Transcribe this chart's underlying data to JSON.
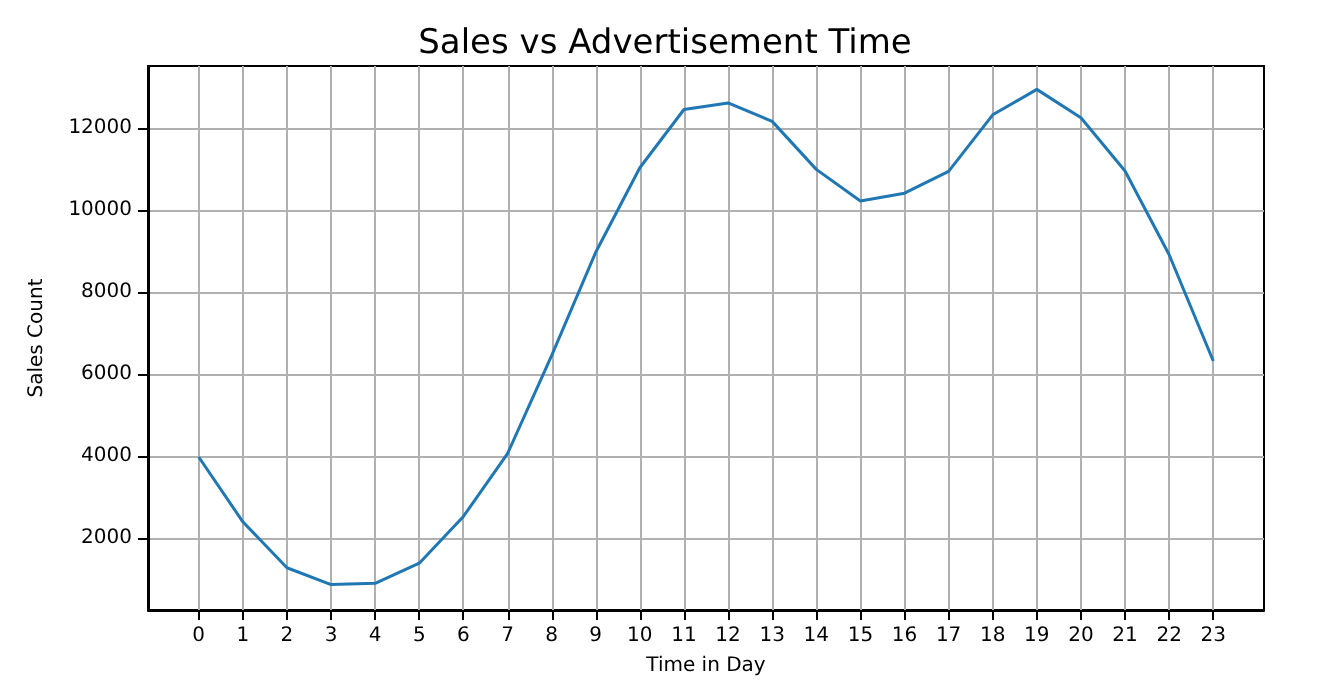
{
  "chart_data": {
    "type": "line",
    "title": "Sales vs Advertisement Time",
    "xlabel": "Time in Day",
    "ylabel": "Sales Count",
    "x": [
      0,
      1,
      2,
      3,
      4,
      5,
      6,
      7,
      8,
      9,
      10,
      11,
      12,
      13,
      14,
      15,
      16,
      17,
      18,
      19,
      20,
      21,
      22,
      23
    ],
    "series": [
      {
        "color": "#1f77b4",
        "values": [
          3970,
          2390,
          1270,
          860,
          890,
          1380,
          2520,
          4050,
          6440,
          8960,
          11020,
          12440,
          12600,
          12150,
          10980,
          10210,
          10400,
          10930,
          12310,
          12930,
          12240,
          10940,
          8900,
          6310
        ]
      }
    ],
    "xlim": [
      -1.15,
      24.15
    ],
    "xticks": [
      0,
      1,
      2,
      3,
      4,
      5,
      6,
      7,
      8,
      9,
      10,
      11,
      12,
      13,
      14,
      15,
      16,
      17,
      18,
      19,
      20,
      21,
      22,
      23
    ],
    "ylim": [
      240,
      13500
    ],
    "yticks": [
      2000,
      4000,
      6000,
      8000,
      10000,
      12000
    ],
    "grid": true,
    "marker": "none",
    "line_style": "solid"
  }
}
